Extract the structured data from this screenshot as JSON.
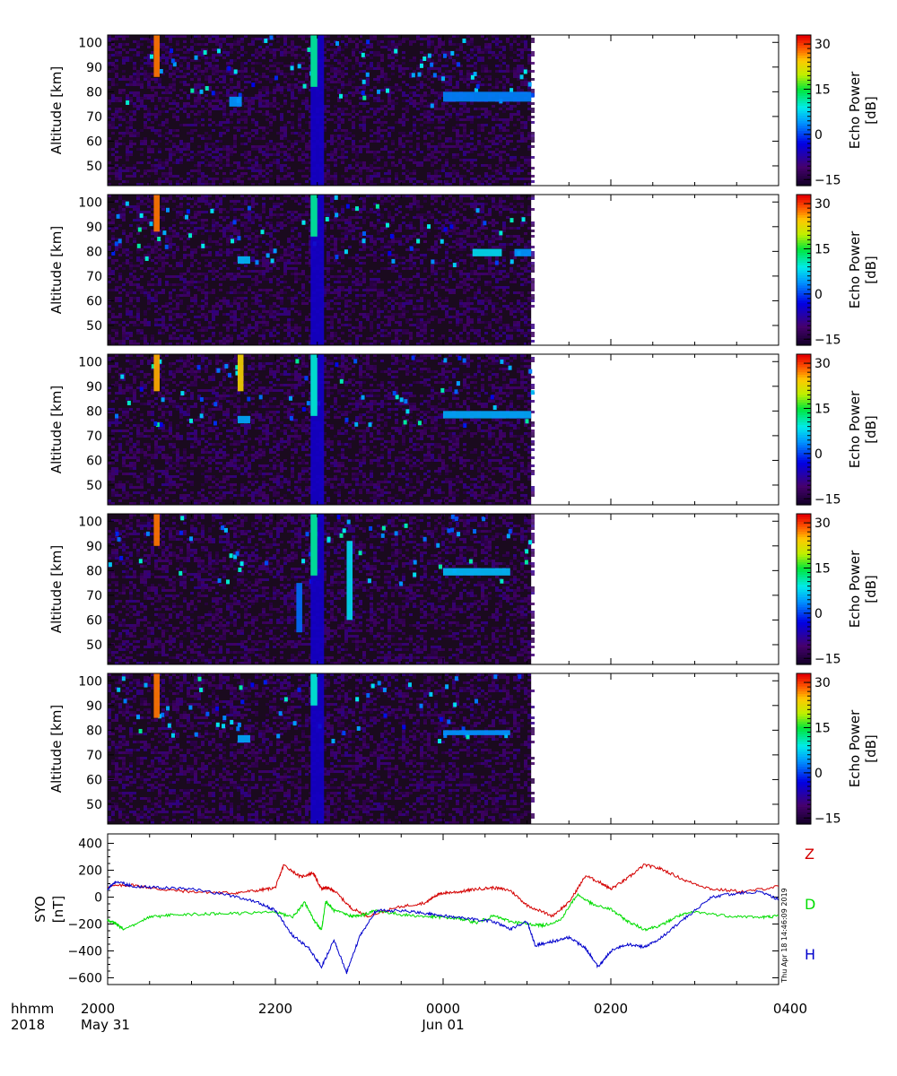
{
  "colors": {
    "z_component": "#d40000",
    "d_component": "#00dd00",
    "h_component": "#0000cc",
    "panel_background": "#1a0a1e",
    "frame": "#000000"
  },
  "chart_data": [
    {
      "type": "heatmap",
      "panel": 1,
      "ylabel": "Altitude [km]",
      "yticks": [
        50,
        60,
        70,
        80,
        90,
        100
      ],
      "ylim": [
        42,
        103
      ],
      "xlim_hours": [
        20,
        28
      ],
      "data_end_hour": 25.05,
      "colorbar": {
        "label_line1": "Echo Power",
        "label_line2": "[dB]",
        "ticks": [
          30,
          15,
          0,
          -15
        ],
        "range": [
          -17,
          33
        ],
        "colormap": "rainbow"
      },
      "features": [
        {
          "t0": 22.42,
          "t1": 22.58,
          "a0": 42,
          "a1": 103,
          "db": -5,
          "label": "broadband echo column"
        },
        {
          "t0": 22.42,
          "t1": 22.5,
          "a0": 82,
          "a1": 103,
          "db": 12,
          "label": "strong echo column"
        },
        {
          "t0": 20.55,
          "t1": 20.62,
          "a0": 86,
          "a1": 103,
          "db": 28
        },
        {
          "t0": 24.0,
          "t1": 25.05,
          "a0": 76,
          "a1": 80,
          "db": 3
        },
        {
          "t0": 21.45,
          "t1": 21.6,
          "a0": 74,
          "a1": 78,
          "db": 4
        }
      ]
    },
    {
      "type": "heatmap",
      "panel": 2,
      "ylabel": "Altitude [km]",
      "yticks": [
        50,
        60,
        70,
        80,
        90,
        100
      ],
      "ylim": [
        42,
        103
      ],
      "xlim_hours": [
        20,
        28
      ],
      "data_end_hour": 25.05,
      "colorbar": {
        "label_line1": "Echo Power",
        "label_line2": "[dB]",
        "ticks": [
          30,
          15,
          0,
          -15
        ],
        "range": [
          -17,
          33
        ],
        "colormap": "rainbow"
      },
      "features": [
        {
          "t0": 22.42,
          "t1": 22.58,
          "a0": 42,
          "a1": 103,
          "db": -5
        },
        {
          "t0": 22.42,
          "t1": 22.5,
          "a0": 86,
          "a1": 103,
          "db": 12
        },
        {
          "t0": 20.55,
          "t1": 20.62,
          "a0": 88,
          "a1": 103,
          "db": 28
        },
        {
          "t0": 24.35,
          "t1": 24.7,
          "a0": 78,
          "a1": 81,
          "db": 8
        },
        {
          "t0": 24.85,
          "t1": 25.05,
          "a0": 78,
          "a1": 81,
          "db": 4
        },
        {
          "t0": 21.55,
          "t1": 21.7,
          "a0": 75,
          "a1": 78,
          "db": 6
        }
      ]
    },
    {
      "type": "heatmap",
      "panel": 3,
      "ylabel": "Altitude [km]",
      "yticks": [
        50,
        60,
        70,
        80,
        90,
        100
      ],
      "ylim": [
        42,
        103
      ],
      "xlim_hours": [
        20,
        28
      ],
      "data_end_hour": 25.05,
      "colorbar": {
        "label_line1": "Echo Power",
        "label_line2": "[dB]",
        "ticks": [
          30,
          15,
          0,
          -15
        ],
        "range": [
          -17,
          33
        ],
        "colormap": "rainbow"
      },
      "features": [
        {
          "t0": 22.42,
          "t1": 22.58,
          "a0": 42,
          "a1": 103,
          "db": -5
        },
        {
          "t0": 22.42,
          "t1": 22.5,
          "a0": 78,
          "a1": 103,
          "db": 10
        },
        {
          "t0": 20.55,
          "t1": 20.62,
          "a0": 88,
          "a1": 103,
          "db": 26
        },
        {
          "t0": 21.55,
          "t1": 21.62,
          "a0": 88,
          "a1": 103,
          "db": 24
        },
        {
          "t0": 24.0,
          "t1": 25.05,
          "a0": 77,
          "a1": 80,
          "db": 5
        },
        {
          "t0": 21.55,
          "t1": 21.7,
          "a0": 75,
          "a1": 78,
          "db": 5
        }
      ]
    },
    {
      "type": "heatmap",
      "panel": 4,
      "ylabel": "Altitude [km]",
      "yticks": [
        50,
        60,
        70,
        80,
        90,
        100
      ],
      "ylim": [
        42,
        103
      ],
      "xlim_hours": [
        20,
        28
      ],
      "data_end_hour": 25.05,
      "colorbar": {
        "label_line1": "Echo Power",
        "label_line2": "[dB]",
        "ticks": [
          30,
          15,
          0,
          -15
        ],
        "range": [
          -17,
          33
        ],
        "colormap": "rainbow"
      },
      "features": [
        {
          "t0": 22.42,
          "t1": 22.58,
          "a0": 42,
          "a1": 103,
          "db": -5
        },
        {
          "t0": 22.42,
          "t1": 22.5,
          "a0": 78,
          "a1": 103,
          "db": 12
        },
        {
          "t0": 20.55,
          "t1": 20.62,
          "a0": 90,
          "a1": 103,
          "db": 28
        },
        {
          "t0": 22.85,
          "t1": 22.92,
          "a0": 60,
          "a1": 92,
          "db": 8
        },
        {
          "t0": 24.0,
          "t1": 24.8,
          "a0": 78,
          "a1": 81,
          "db": 6
        },
        {
          "t0": 22.25,
          "t1": 22.32,
          "a0": 55,
          "a1": 75,
          "db": 2
        }
      ]
    },
    {
      "type": "heatmap",
      "panel": 5,
      "ylabel": "Altitude [km]",
      "yticks": [
        50,
        60,
        70,
        80,
        90,
        100
      ],
      "ylim": [
        42,
        103
      ],
      "xlim_hours": [
        20,
        28
      ],
      "data_end_hour": 25.05,
      "colorbar": {
        "label_line1": "Echo Power",
        "label_line2": "[dB]",
        "ticks": [
          30,
          15,
          0,
          -15
        ],
        "range": [
          -17,
          33
        ],
        "colormap": "rainbow"
      },
      "features": [
        {
          "t0": 22.42,
          "t1": 22.58,
          "a0": 42,
          "a1": 103,
          "db": -5
        },
        {
          "t0": 22.42,
          "t1": 22.5,
          "a0": 90,
          "a1": 103,
          "db": 10
        },
        {
          "t0": 20.55,
          "t1": 20.62,
          "a0": 85,
          "a1": 103,
          "db": 28
        },
        {
          "t0": 24.0,
          "t1": 24.8,
          "a0": 78,
          "a1": 80,
          "db": 4
        },
        {
          "t0": 21.55,
          "t1": 21.7,
          "a0": 75,
          "a1": 78,
          "db": 5
        }
      ]
    },
    {
      "type": "line",
      "panel": 6,
      "ylabel_line1": "SYO",
      "ylabel_line2": "[nT]",
      "yticks": [
        400,
        200,
        0,
        -200,
        -400,
        -600
      ],
      "ylim": [
        -650,
        470
      ],
      "xlim_hours": [
        20,
        28
      ],
      "series": [
        {
          "name": "Z",
          "color": "#d40000",
          "x": [
            20.0,
            20.3,
            20.6,
            21.0,
            21.5,
            21.8,
            22.0,
            22.1,
            22.3,
            22.45,
            22.55,
            22.6,
            22.7,
            22.9,
            23.1,
            23.5,
            23.8,
            23.9,
            24.0,
            24.2,
            24.4,
            24.6,
            24.8,
            25.0,
            25.3,
            25.5,
            25.7,
            25.9,
            26.0,
            26.2,
            26.4,
            26.6,
            26.9,
            27.2,
            27.6,
            28.0
          ],
          "y": [
            80,
            90,
            60,
            40,
            30,
            50,
            70,
            240,
            150,
            180,
            60,
            70,
            50,
            -80,
            -140,
            -70,
            -40,
            10,
            30,
            40,
            60,
            70,
            50,
            -60,
            -140,
            -40,
            160,
            100,
            60,
            140,
            240,
            210,
            120,
            60,
            40,
            80
          ]
        },
        {
          "name": "D",
          "color": "#00dd00",
          "x": [
            20.0,
            20.1,
            20.2,
            20.5,
            20.8,
            21.2,
            21.6,
            22.0,
            22.2,
            22.35,
            22.45,
            22.55,
            22.6,
            22.7,
            22.9,
            23.0,
            23.2,
            23.5,
            23.8,
            24.0,
            24.2,
            24.4,
            24.6,
            24.8,
            25.0,
            25.2,
            25.4,
            25.6,
            25.8,
            26.0,
            26.2,
            26.4,
            26.6,
            26.8,
            27.0,
            27.4,
            27.8,
            28.0
          ],
          "y": [
            -170,
            -200,
            -240,
            -150,
            -130,
            -125,
            -120,
            -110,
            -150,
            -40,
            -160,
            -250,
            -30,
            -100,
            -140,
            -140,
            -100,
            -130,
            -145,
            -150,
            -160,
            -190,
            -140,
            -180,
            -200,
            -210,
            -170,
            20,
            -60,
            -90,
            -180,
            -240,
            -210,
            -140,
            -110,
            -140,
            -150,
            -140
          ]
        },
        {
          "name": "H",
          "color": "#0000cc",
          "x": [
            20.0,
            20.1,
            20.3,
            20.6,
            21.0,
            21.4,
            21.8,
            22.0,
            22.2,
            22.4,
            22.55,
            22.7,
            22.85,
            23.0,
            23.2,
            23.5,
            23.8,
            24.0,
            24.3,
            24.6,
            24.8,
            25.0,
            25.1,
            25.3,
            25.5,
            25.7,
            25.85,
            26.0,
            26.2,
            26.4,
            26.6,
            26.9,
            27.2,
            27.5,
            27.8,
            28.0
          ],
          "y": [
            60,
            120,
            80,
            70,
            60,
            20,
            -40,
            -100,
            -280,
            -380,
            -520,
            -320,
            -560,
            -300,
            -100,
            -100,
            -120,
            -140,
            -160,
            -180,
            -240,
            -180,
            -360,
            -330,
            -300,
            -380,
            -520,
            -400,
            -350,
            -370,
            -300,
            -150,
            0,
            30,
            40,
            -20
          ]
        }
      ],
      "side_labels": [
        "Z",
        "D",
        "H"
      ],
      "timestamp_note": "Thu Apr 18 14:46:09 2019"
    }
  ],
  "xaxis": {
    "row_label_1": "hhmm",
    "row_label_2": "2018",
    "ticks": [
      {
        "hour": 20,
        "hhmm": "2000",
        "date": "May 31"
      },
      {
        "hour": 22,
        "hhmm": "2200",
        "date": ""
      },
      {
        "hour": 24,
        "hhmm": "0000",
        "date": "Jun 01"
      },
      {
        "hour": 26,
        "hhmm": "0200",
        "date": ""
      },
      {
        "hour": 28,
        "hhmm": "0400",
        "date": ""
      }
    ]
  }
}
